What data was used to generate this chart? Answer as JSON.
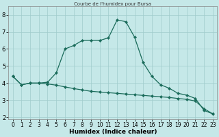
{
  "title": "Courbe de l'humidex pour Bursa",
  "xlabel": "Humidex (Indice chaleur)",
  "x_values": [
    0,
    1,
    2,
    3,
    4,
    5,
    6,
    7,
    8,
    9,
    10,
    11,
    12,
    13,
    14,
    15,
    16,
    17,
    18,
    19,
    20,
    21,
    22,
    23
  ],
  "y_curve1": [
    4.4,
    3.9,
    4.0,
    4.0,
    4.05,
    4.6,
    6.0,
    6.2,
    6.5,
    6.5,
    6.5,
    6.65,
    7.7,
    7.6,
    6.7,
    5.2,
    4.4,
    3.9,
    3.7,
    3.4,
    3.3,
    3.1,
    2.4,
    2.2
  ],
  "y_curve2": [
    4.4,
    3.9,
    4.0,
    4.0,
    3.95,
    3.88,
    3.78,
    3.68,
    3.6,
    3.52,
    3.48,
    3.44,
    3.4,
    3.36,
    3.32,
    3.28,
    3.24,
    3.2,
    3.16,
    3.1,
    3.05,
    2.95,
    2.5,
    2.2
  ],
  "line_color": "#1a6b5a",
  "bg_color": "#c5e8e8",
  "grid_color": "#a0cccc",
  "ylim": [
    1.9,
    8.5
  ],
  "xlim": [
    -0.5,
    23.5
  ],
  "yticks": [
    2,
    3,
    4,
    5,
    6,
    7,
    8
  ],
  "xticks": [
    0,
    1,
    2,
    3,
    4,
    5,
    6,
    7,
    8,
    9,
    10,
    11,
    12,
    13,
    14,
    15,
    16,
    17,
    18,
    19,
    20,
    21,
    22,
    23
  ],
  "xlabel_fontsize": 6.5,
  "tick_fontsize": 5.5,
  "marker_size": 2.2,
  "line_width": 0.9
}
